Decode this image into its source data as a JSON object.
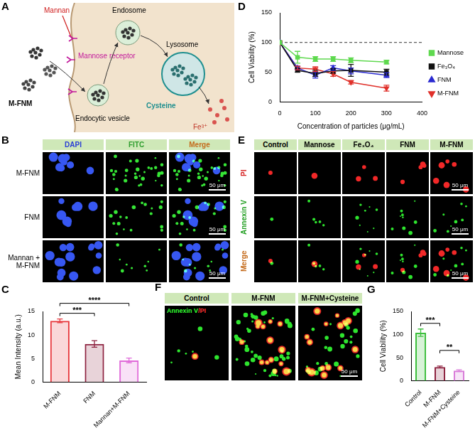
{
  "panel_labels": [
    "A",
    "B",
    "C",
    "D",
    "E",
    "F",
    "G"
  ],
  "schematic": {
    "particle": "M-FNM",
    "blocker": "Mannan",
    "receptor": "Mannose receptor",
    "vesicle": "Endocytic vesicle",
    "endosome": "Endosome",
    "lysosome": "Lysosome",
    "reagent": "Cysteine",
    "product": "Fe³⁺"
  },
  "uptake_images": {
    "columns": [
      "DAPI",
      "FITC",
      "Merge"
    ],
    "rows": [
      "M-FNM",
      "FNM",
      "Mannan + M-FNM"
    ],
    "scale_bar": "50 μm"
  },
  "apoptosis_images": {
    "columns": [
      "Control",
      "Mannose",
      "Fe₃O₄",
      "FNM",
      "M-FNM"
    ],
    "rows": [
      "PI",
      "Annexin V",
      "Merge"
    ],
    "scale_bar": "50 μm"
  },
  "rescue_images": {
    "columns": [
      "Control",
      "M-FNM",
      "M-FNM+Cysteine"
    ],
    "stain": "Annexin V/PI",
    "scale_bar": "50 μm"
  },
  "chart_data": [
    {
      "type": "bar",
      "y_label": "Mean Intensity (a.u.)",
      "categories": [
        "M-FNM",
        "FNM",
        "Mannan+M-FNM"
      ],
      "values": [
        13.0,
        8.1,
        4.6
      ],
      "errors": [
        0.4,
        0.7,
        0.5
      ],
      "colors": [
        "#e8393f",
        "#8e2340",
        "#e06ad9"
      ],
      "ylim": [
        0,
        15
      ],
      "yticks": [
        0,
        5,
        10,
        15
      ],
      "significance": [
        {
          "from": 0,
          "to": 1,
          "label": "***"
        },
        {
          "from": 0,
          "to": 2,
          "label": "****"
        }
      ]
    },
    {
      "type": "line",
      "x_label": "Concentration of particles (μg/mL)",
      "y_label": "Cell Viability (%)",
      "x": [
        0,
        50,
        100,
        150,
        200,
        300
      ],
      "series": [
        {
          "name": "Mannose",
          "color": "#5fd94f",
          "marker": "square",
          "values": [
            100,
            75,
            72,
            72,
            70,
            67
          ],
          "errors": [
            0,
            10,
            4,
            4,
            4,
            3
          ]
        },
        {
          "name": "Fe₃O₄",
          "color": "#111111",
          "marker": "square",
          "values": [
            100,
            53,
            48,
            52,
            53,
            50
          ],
          "errors": [
            0,
            3,
            5,
            4,
            10,
            5
          ]
        },
        {
          "name": "FNM",
          "color": "#2a2ad0",
          "marker": "triangle",
          "values": [
            100,
            57,
            45,
            57,
            52,
            45
          ],
          "errors": [
            0,
            3,
            5,
            4,
            5,
            4
          ]
        },
        {
          "name": "M-FNM",
          "color": "#e0302a",
          "marker": "triangle-down",
          "values": [
            100,
            57,
            55,
            47,
            33,
            23
          ],
          "errors": [
            0,
            3,
            4,
            4,
            3,
            5
          ]
        }
      ],
      "reference_lines": [
        100
      ],
      "xlim": [
        0,
        400
      ],
      "xticks": [
        0,
        100,
        200,
        300,
        400
      ],
      "ylim": [
        0,
        150
      ],
      "yticks": [
        0,
        50,
        100,
        150
      ],
      "legend": "right"
    },
    {
      "type": "bar",
      "y_label": "Cell Viability (%)",
      "categories": [
        "Control",
        "M-FNM",
        "M-FNM+Cysteine"
      ],
      "values": [
        104,
        30,
        22
      ],
      "errors": [
        8,
        2,
        2
      ],
      "colors": [
        "#3dbf3d",
        "#8e2340",
        "#d97ad9"
      ],
      "ylim": [
        0,
        150
      ],
      "yticks": [
        0,
        50,
        100,
        150
      ],
      "significance": [
        {
          "from": 0,
          "to": 1,
          "label": "***"
        },
        {
          "from": 1,
          "to": 2,
          "label": "**"
        }
      ]
    }
  ]
}
